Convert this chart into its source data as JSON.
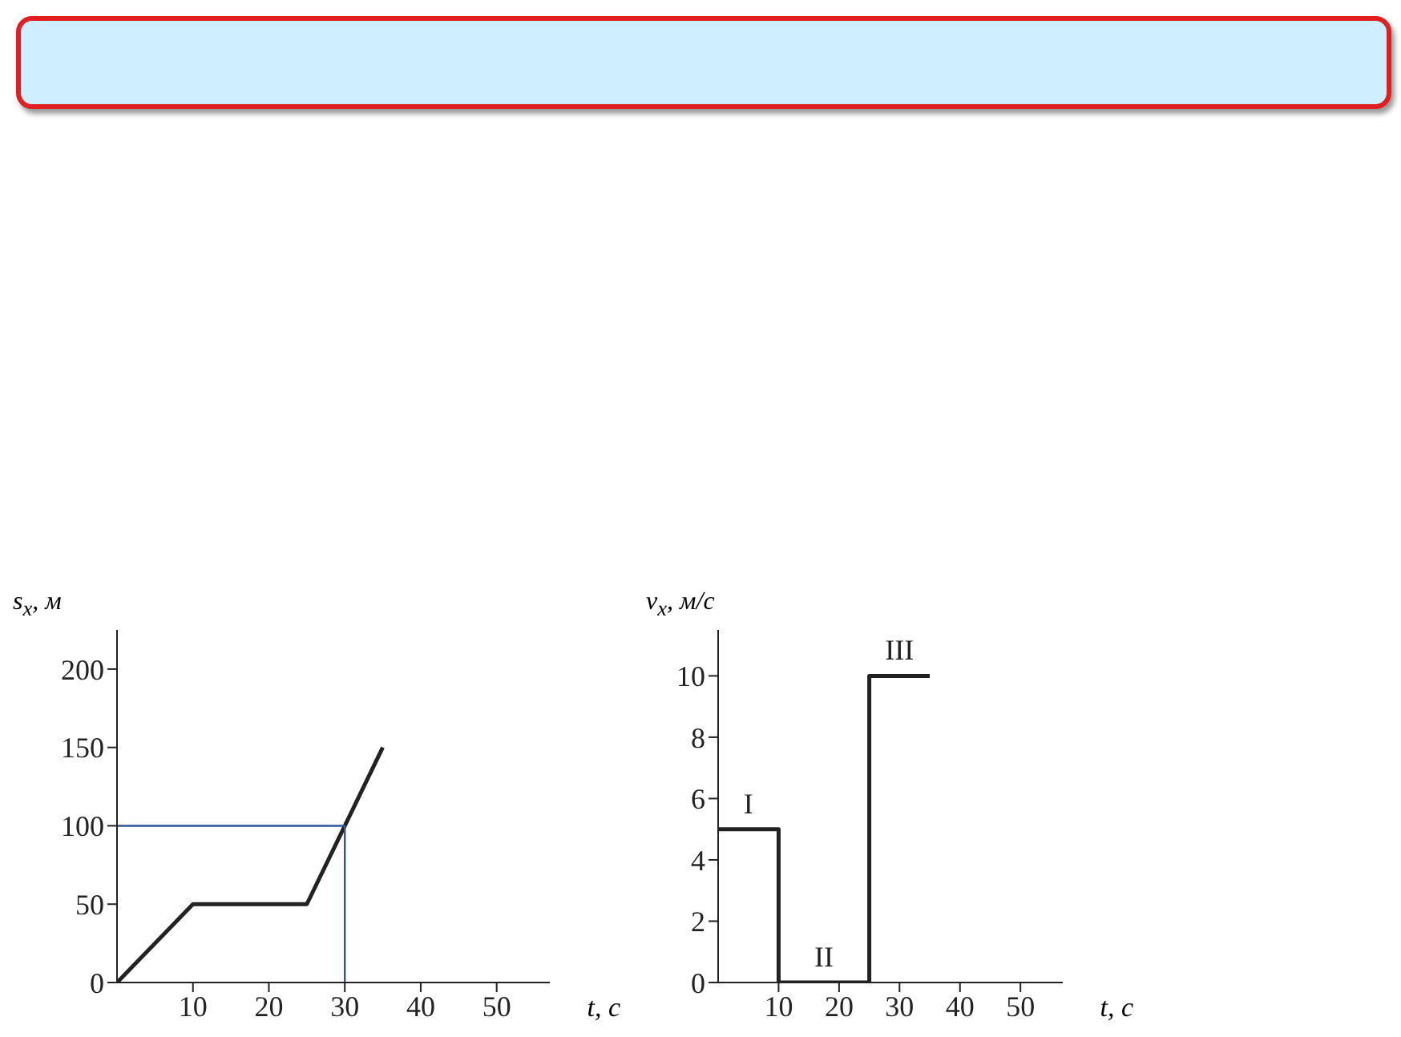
{
  "chart_data": [
    {
      "type": "line",
      "xlabel": "t, с",
      "ylabel": "s$_{x}$, м",
      "xlim": [
        0,
        57
      ],
      "ylim": [
        0,
        225
      ],
      "xticks": [
        10,
        20,
        30,
        40,
        50
      ],
      "yticks": [
        0,
        50,
        100,
        150,
        200
      ],
      "series": [
        {
          "color": "#222222",
          "x": [
            0,
            10,
            25,
            35
          ],
          "values": [
            0,
            50,
            50,
            150
          ]
        },
        {
          "color": "#2f5597",
          "x": [
            0,
            30,
            30
          ],
          "values": [
            100,
            100,
            0
          ]
        }
      ]
    },
    {
      "type": "step",
      "xlabel": "t, с",
      "ylabel": "v$_{x}$, м/с",
      "xlim": [
        0,
        57
      ],
      "ylim": [
        0,
        11.5
      ],
      "xticks": [
        10,
        20,
        30,
        40,
        50
      ],
      "yticks": [
        0,
        2,
        4,
        6,
        8,
        10
      ],
      "series": [
        {
          "color": "#222222",
          "x": [
            0,
            10,
            25,
            35
          ],
          "values": [
            5,
            0,
            10,
            10
          ]
        }
      ],
      "annotations": [
        {
          "text": "I",
          "x": 5,
          "y": 5
        },
        {
          "text": "II",
          "x": 17.5,
          "y": 0
        },
        {
          "text": "III",
          "x": 30,
          "y": 10
        }
      ]
    }
  ]
}
